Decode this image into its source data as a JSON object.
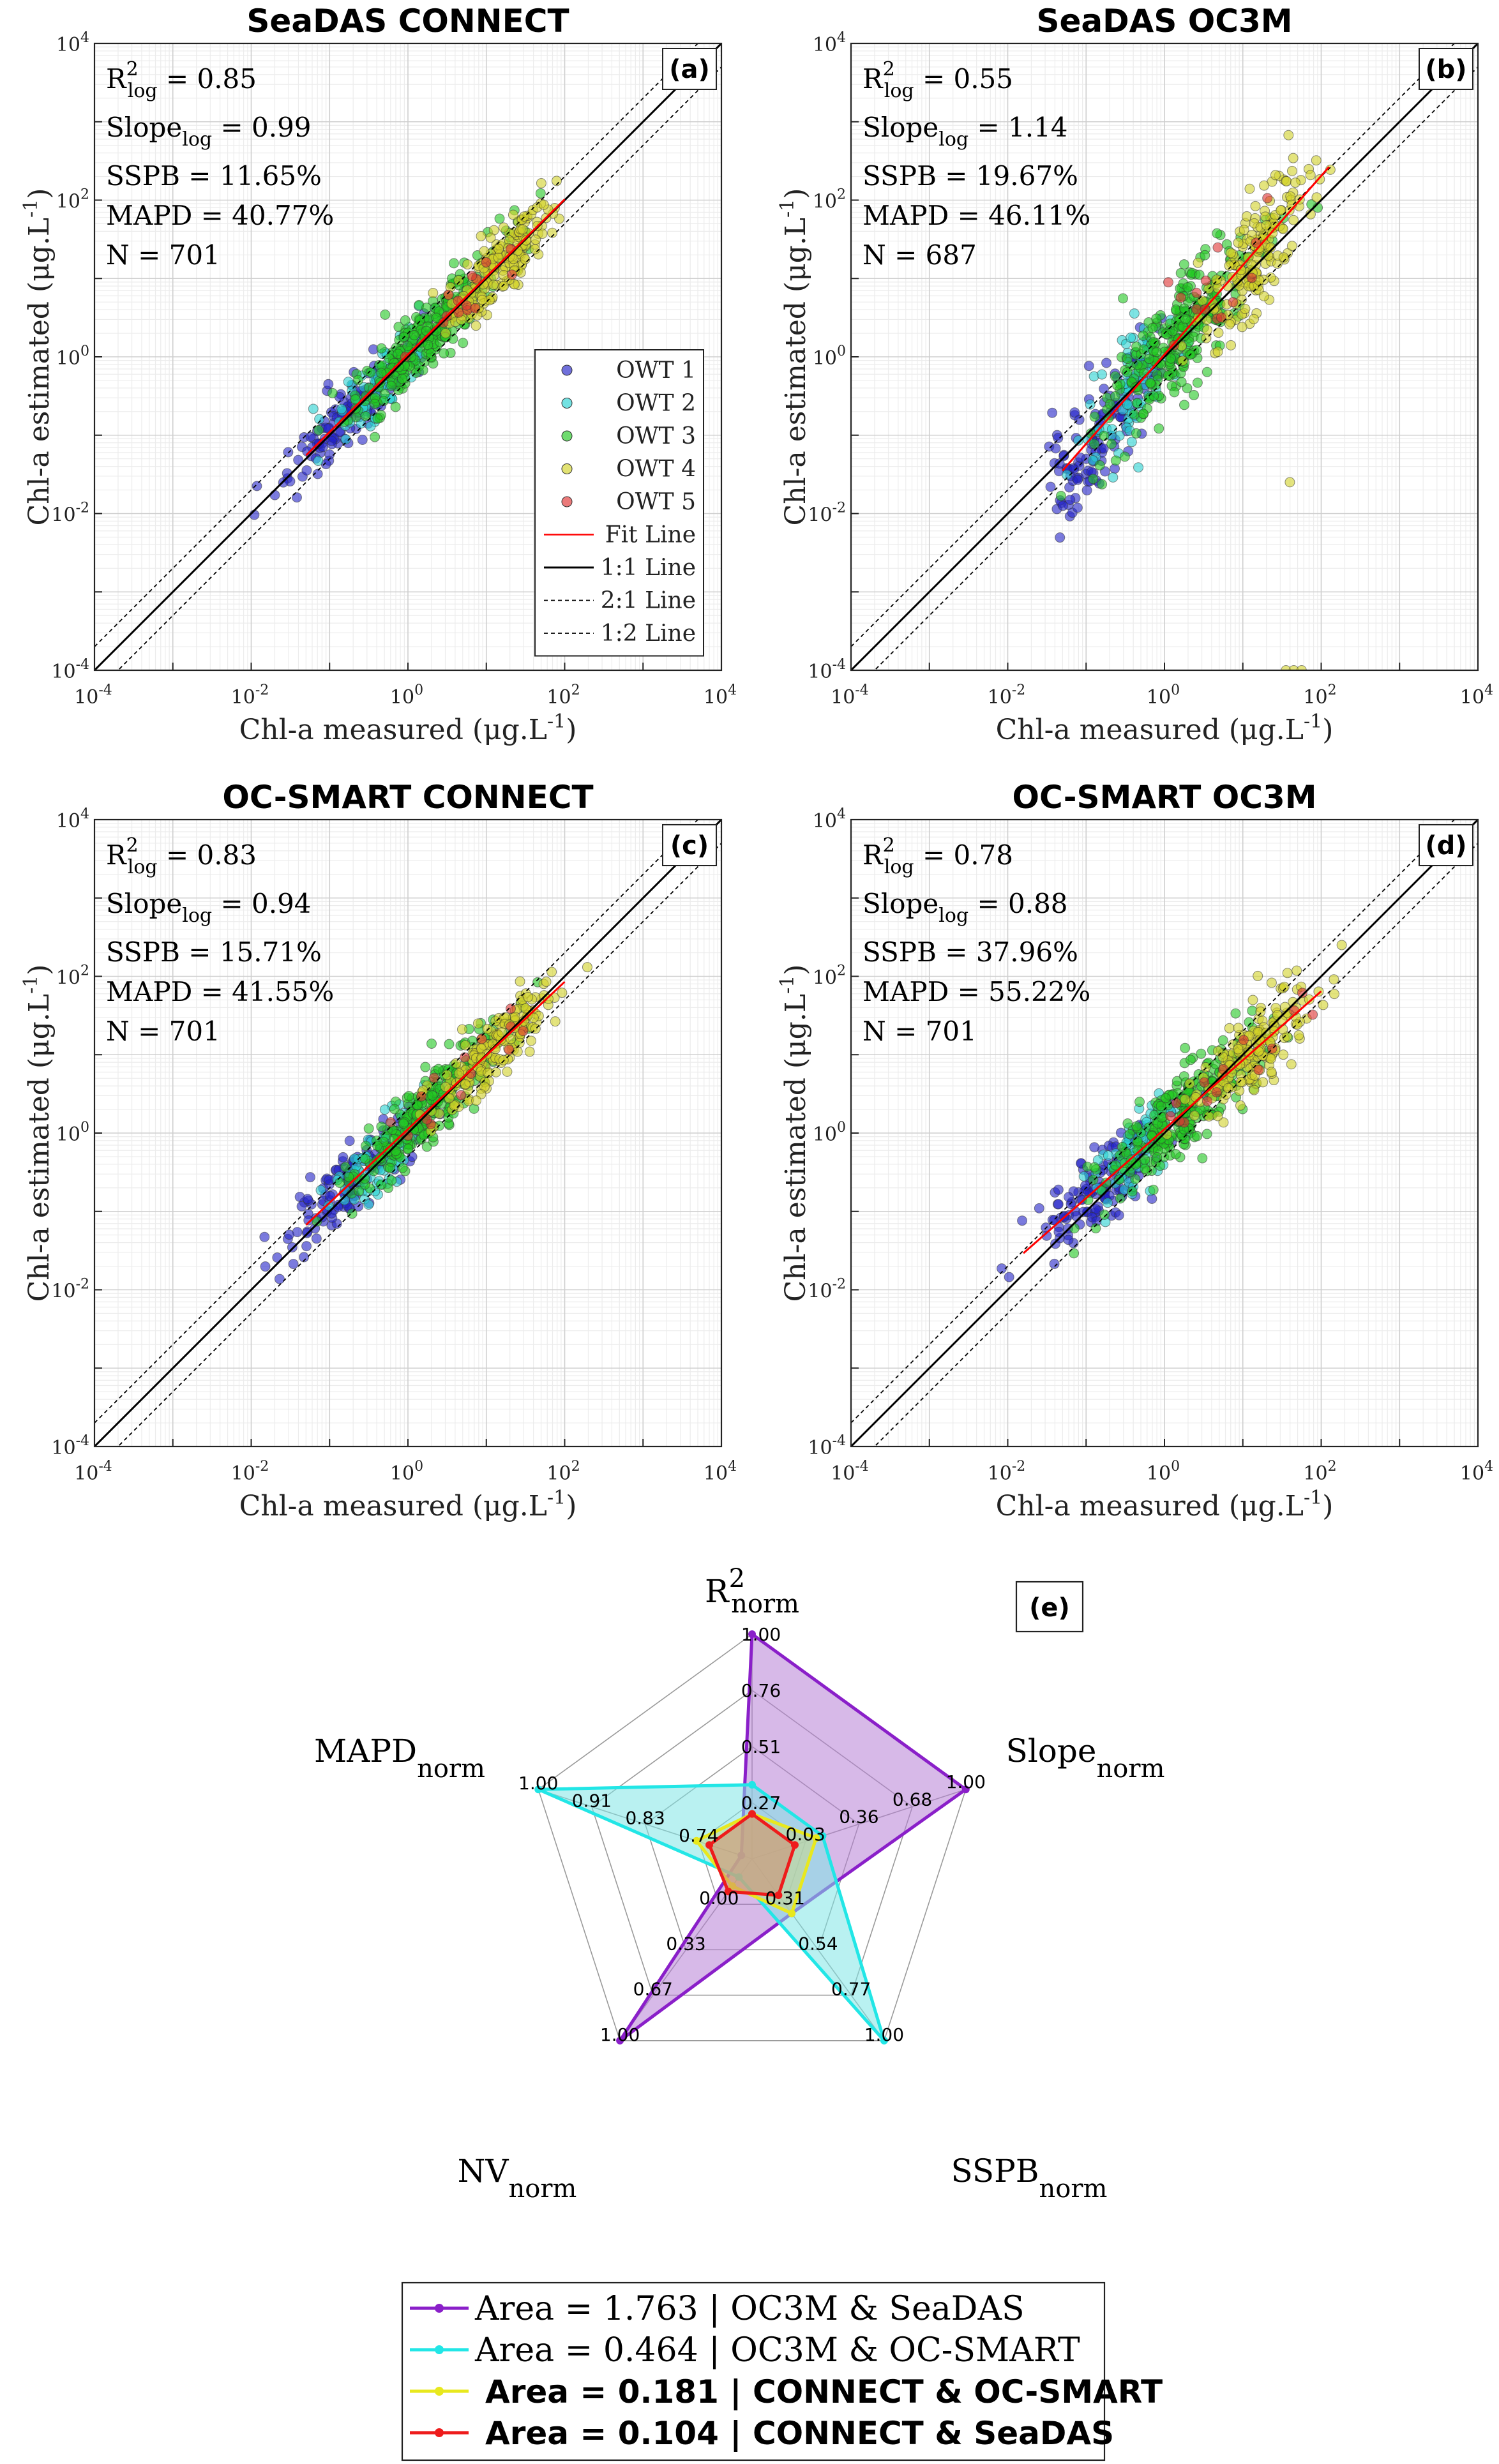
{
  "scatter_panels": [
    {
      "id": "a",
      "title": "SeaDAS CONNECT",
      "label": "(a)",
      "r2": "0.85",
      "slope": "0.99",
      "sspb": "11.65%",
      "mapd": "40.77%",
      "n": "701",
      "seed": 11,
      "fit": {
        "slope": 0.99,
        "intercept": 0.03,
        "x0": -1.3,
        "x1": 2.0
      },
      "outliers": [],
      "show_legend": true
    },
    {
      "id": "b",
      "title": "SeaDAS OC3M",
      "label": "(b)",
      "r2": "0.55",
      "slope": "1.14",
      "sspb": "19.67%",
      "mapd": "46.11%",
      "n": "687",
      "seed": 23,
      "fit": {
        "slope": 1.14,
        "intercept": 0.03,
        "x0": -1.3,
        "x1": 2.1
      },
      "outliers": [
        [
          1.6,
          -1.6
        ],
        [
          1.55,
          -4.0
        ],
        [
          1.65,
          -4.0
        ],
        [
          1.75,
          -4.0
        ]
      ],
      "show_legend": false
    },
    {
      "id": "c",
      "title": "OC-SMART CONNECT",
      "label": "(c)",
      "r2": "0.83",
      "slope": "0.94",
      "sspb": "15.71%",
      "mapd": "41.55%",
      "n": "701",
      "seed": 37,
      "fit": {
        "slope": 0.94,
        "intercept": 0.05,
        "x0": -1.3,
        "x1": 2.0
      },
      "outliers": [],
      "show_legend": false
    },
    {
      "id": "d",
      "title": "OC-SMART OC3M",
      "label": "(d)",
      "r2": "0.78",
      "slope": "0.88",
      "sspb": "37.96%",
      "mapd": "55.22%",
      "n": "701",
      "seed": 53,
      "fit": {
        "slope": 0.88,
        "intercept": 0.05,
        "x0": -1.8,
        "x1": 2.0
      },
      "outliers": [],
      "show_legend": false
    }
  ],
  "scatter_axes": {
    "xlabel": "Chl-a measured",
    "xunit": "(μg.L",
    "ylabel": "Chl-a estimated",
    "yunit": "(μg.L",
    "scale": "log",
    "xlim": [
      0.0001,
      10000
    ],
    "ylim": [
      0.0001,
      10000
    ],
    "ticks": [
      "-4",
      "-2",
      "0",
      "2",
      "4"
    ],
    "grid": true
  },
  "stat_labels": {
    "r2_main": "R",
    "r2_sup": "2",
    "r2_sub": "log",
    "slope_main": "Slope",
    "slope_sub": "log",
    "sspb": "SSPB",
    "mapd": "MAPD",
    "n": "N"
  },
  "owt_classes": [
    {
      "name": "OWT 1",
      "color": "#2323c8",
      "logx_mu": -0.75,
      "logx_sd": 0.42,
      "share": 0.2
    },
    {
      "name": "OWT 2",
      "color": "#28d2d2",
      "logx_mu": -0.35,
      "logx_sd": 0.32,
      "share": 0.12
    },
    {
      "name": "OWT 3",
      "color": "#22c822",
      "logx_mu": 0.25,
      "logx_sd": 0.48,
      "share": 0.4
    },
    {
      "name": "OWT 4",
      "color": "#d2d228",
      "logx_mu": 1.15,
      "logx_sd": 0.38,
      "share": 0.26
    },
    {
      "name": "OWT 5",
      "color": "#e03232",
      "logx_mu": 0.7,
      "logx_sd": 0.5,
      "share": 0.02
    }
  ],
  "scatter_legend": [
    {
      "name": "OWT 1",
      "kind": "marker",
      "color": "#2323c8"
    },
    {
      "name": "OWT 2",
      "kind": "marker",
      "color": "#28d2d2"
    },
    {
      "name": "OWT 3",
      "kind": "marker",
      "color": "#22c822"
    },
    {
      "name": "OWT 4",
      "kind": "marker",
      "color": "#d2d228"
    },
    {
      "name": "OWT 5",
      "kind": "marker",
      "color": "#e03232"
    },
    {
      "name": "Fit Line",
      "kind": "fit",
      "color": "#ff0000"
    },
    {
      "name": "1:1 Line",
      "kind": "solid",
      "color": "#000000"
    },
    {
      "name": "2:1 Line",
      "kind": "dash",
      "color": "#000000"
    },
    {
      "name": "1:2 Line",
      "kind": "dash",
      "color": "#000000"
    }
  ],
  "radar": {
    "label": "(e)",
    "axes": [
      {
        "main": "R",
        "sup": "2",
        "sub": "norm"
      },
      {
        "main": "Slope",
        "sub": "norm"
      },
      {
        "main": "SSPB",
        "sub": "norm"
      },
      {
        "main": "NV",
        "sub": "norm"
      },
      {
        "main": "MAPD",
        "sub": "norm"
      }
    ],
    "axis_ticks": [
      [
        "0.27",
        "0.51",
        "0.76",
        "1.00"
      ],
      [
        "0.03",
        "0.36",
        "0.68",
        "1.00"
      ],
      [
        "0.31",
        "0.54",
        "0.77",
        "1.00"
      ],
      [
        "0.00",
        "0.33",
        "0.67",
        "1.00"
      ],
      [
        "0.74",
        "0.83",
        "0.91",
        "1.00"
      ]
    ],
    "series": [
      {
        "legend": "Area = 1.763 | OC3M & SeaDAS",
        "bold": false,
        "color": "#8a1fc9",
        "fill": "#b77fd6",
        "values": [
          1.0,
          1.0,
          0.3,
          1.0,
          0.05
        ]
      },
      {
        "legend": "Area = 0.464 | OC3M & OC-SMART",
        "bold": false,
        "color": "#22e6e6",
        "fill": "#7fe6e6",
        "values": [
          0.33,
          0.33,
          1.0,
          0.1,
          1.0
        ]
      },
      {
        "legend": "Area = 0.181 | CONNECT & OC-SMART",
        "bold": true,
        "color": "#e8e81e",
        "fill": "#c9d98a",
        "values": [
          0.2,
          0.3,
          0.3,
          0.15,
          0.26
        ]
      },
      {
        "legend": "Area = 0.104 | CONNECT & SeaDAS",
        "bold": true,
        "color": "#ee1c1c",
        "fill": "#cf8a70",
        "values": [
          0.2,
          0.2,
          0.2,
          0.18,
          0.2
        ]
      }
    ]
  }
}
